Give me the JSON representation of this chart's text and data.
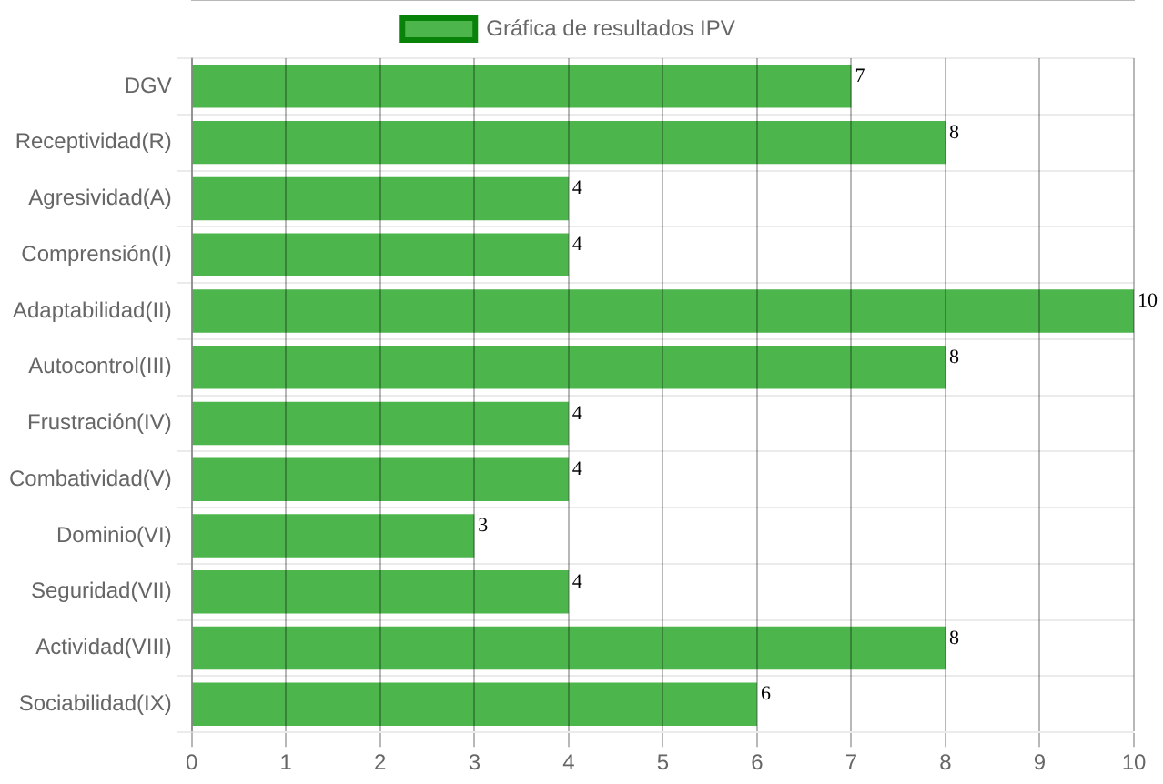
{
  "chart_data": {
    "type": "bar",
    "orientation": "horizontal",
    "categories": [
      "DGV",
      "Receptividad(R)",
      "Agresividad(A)",
      "Comprensión(I)",
      "Adaptabilidad(II)",
      "Autocontrol(III)",
      "Frustración(IV)",
      "Combatividad(V)",
      "Dominio(VI)",
      "Seguridad(VII)",
      "Actividad(VIII)",
      "Sociabilidad(IX)"
    ],
    "series": [
      {
        "name": "Gráfica de resultados IPV",
        "color": "#4cb54c",
        "values": [
          7,
          8,
          4,
          4,
          10,
          8,
          4,
          4,
          3,
          4,
          8,
          6
        ]
      }
    ],
    "xlim": [
      0,
      10
    ],
    "xticks": [
      0,
      1,
      2,
      3,
      4,
      5,
      6,
      7,
      8,
      9,
      10
    ],
    "grid": true,
    "legend": "top",
    "data_labels": true
  }
}
